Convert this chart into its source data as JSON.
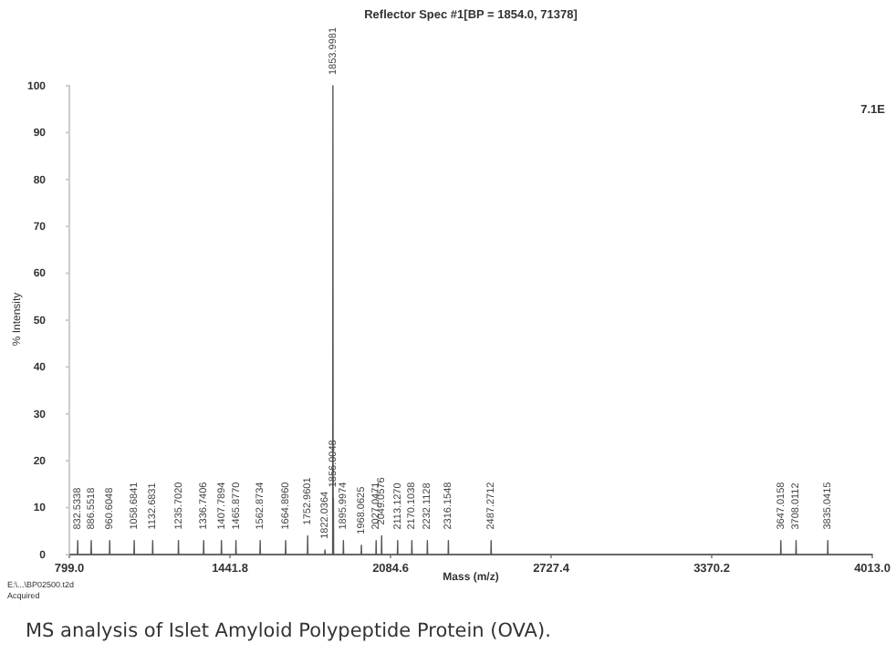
{
  "chart_data": {
    "type": "line",
    "title": "Reflector Spec #1[BP = 1854.0, 71378]",
    "xlabel": "Mass (m/z)",
    "ylabel": "% Intensity",
    "xlim": [
      799.0,
      4013.0
    ],
    "xticks": [
      {
        "value": 799.0,
        "label": "799.0"
      },
      {
        "value": 1441.8,
        "label": "1441.8"
      },
      {
        "value": 2084.6,
        "label": "2084.6"
      },
      {
        "value": 2727.4,
        "label": "2727.4"
      },
      {
        "value": 3370.2,
        "label": "3370.2"
      },
      {
        "value": 4013.0,
        "label": "4013.0"
      }
    ],
    "ylim": [
      0,
      100
    ],
    "yticks": [
      0,
      10,
      20,
      30,
      40,
      50,
      60,
      70,
      80,
      90,
      100
    ],
    "grid": false,
    "marker": "none",
    "line_style": "solid",
    "series": [
      {
        "color": "#555555",
        "x": [
          799,
          831.5,
          832.5,
          833.5,
          885.5,
          886.6,
          887.6,
          959.6,
          960.6,
          961.6,
          1057.7,
          1058.7,
          1059.7,
          1131.7,
          1132.7,
          1133.7,
          1234.7,
          1235.7,
          1236.7,
          1335.7,
          1336.7,
          1337.7,
          1406.8,
          1407.8,
          1408.8,
          1464.9,
          1465.9,
          1466.9,
          1561.9,
          1562.9,
          1563.9,
          1663.9,
          1664.9,
          1665.9,
          1752.0,
          1753.0,
          1754.0,
          1821.0,
          1822.0,
          1823.0,
          1853.0,
          1854.0,
          1855.0,
          1856.0,
          1857.0,
          1895.0,
          1896.0,
          1897.0,
          1967.1,
          1968.1,
          1969.1,
          2026.0,
          2027.0,
          2028.0,
          2048.1,
          2049.1,
          2050.1,
          2112.1,
          2113.1,
          2114.1,
          2169.1,
          2170.1,
          2171.1,
          2231.1,
          2232.1,
          2233.1,
          2315.2,
          2316.2,
          2317.2,
          2486.3,
          2487.3,
          2488.3,
          3646.0,
          3647.0,
          3648.0,
          3707.0,
          3708.0,
          3709.0,
          3834.0,
          3835.0,
          3836.0,
          4013
        ],
        "values": [
          0,
          0,
          3,
          0,
          0,
          3,
          0,
          0,
          3,
          0,
          0,
          3,
          0,
          0,
          3,
          0,
          0,
          3,
          0,
          0,
          3,
          0,
          0,
          3,
          0,
          0,
          3,
          0,
          0,
          3,
          0,
          0,
          3,
          0,
          0,
          4,
          0,
          0,
          1,
          0,
          0,
          100,
          0,
          12,
          0,
          0,
          3,
          0,
          0,
          2,
          0,
          0,
          3,
          0,
          0,
          4,
          0,
          0,
          3,
          0,
          0,
          3,
          0,
          0,
          3,
          0,
          0,
          3,
          0,
          0,
          3,
          0,
          0,
          3,
          0,
          0,
          3,
          0,
          0,
          3,
          0,
          0
        ]
      }
    ],
    "annotations": [
      {
        "text": "832.5338",
        "x": 832.5,
        "y": 3
      },
      {
        "text": "886.5518",
        "x": 886.6,
        "y": 3
      },
      {
        "text": "960.6048",
        "x": 960.6,
        "y": 3
      },
      {
        "text": "1058.6841",
        "x": 1058.7,
        "y": 3
      },
      {
        "text": "1132.6831",
        "x": 1132.7,
        "y": 3
      },
      {
        "text": "1235.7020",
        "x": 1235.7,
        "y": 3
      },
      {
        "text": "1336.7406",
        "x": 1336.7,
        "y": 3
      },
      {
        "text": "1407.7894",
        "x": 1407.8,
        "y": 3
      },
      {
        "text": "1465.8770",
        "x": 1465.9,
        "y": 3
      },
      {
        "text": "1562.8734",
        "x": 1562.9,
        "y": 3
      },
      {
        "text": "1664.8960",
        "x": 1664.9,
        "y": 3
      },
      {
        "text": "1752.9601",
        "x": 1753.0,
        "y": 4
      },
      {
        "text": "1822.0364",
        "x": 1822.0,
        "y": 1
      },
      {
        "text": "1853.9981",
        "x": 1854.0,
        "y": 100
      },
      {
        "text": "1856.0048",
        "x": 1856.0,
        "y": 12
      },
      {
        "text": "1895.9974",
        "x": 1896.0,
        "y": 3
      },
      {
        "text": "1968.0625",
        "x": 1968.1,
        "y": 2
      },
      {
        "text": "2027.0471",
        "x": 2027.0,
        "y": 3
      },
      {
        "text": "2049.0576",
        "x": 2049.1,
        "y": 4
      },
      {
        "text": "2113.1270",
        "x": 2113.1,
        "y": 3
      },
      {
        "text": "2170.1038",
        "x": 2170.1,
        "y": 3
      },
      {
        "text": "2232.1128",
        "x": 2232.1,
        "y": 3
      },
      {
        "text": "2316.1548",
        "x": 2316.2,
        "y": 3
      },
      {
        "text": "2487.2712",
        "x": 2487.3,
        "y": 3
      },
      {
        "text": "3647.0158",
        "x": 3647.0,
        "y": 3
      },
      {
        "text": "3708.0112",
        "x": 3708.0,
        "y": 3
      },
      {
        "text": "3835.0415",
        "x": 3835.0,
        "y": 3
      },
      "7.1E",
      "E:\\...\\BP02500.t2d",
      "Acquired",
      "MS analysis of Islet Amyloid Polypeptide Protein (OVA)."
    ]
  }
}
